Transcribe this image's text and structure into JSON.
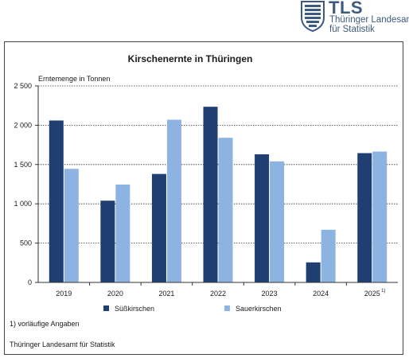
{
  "header": {
    "logo_abbr": "TLS",
    "logo_line1": "Thüringer Landesamt",
    "logo_line2": "für Statistik"
  },
  "chart_data": {
    "type": "bar",
    "title": "Kirschenernte in Thüringen",
    "ylabel": "Erntemenge in Tonnen",
    "xlabel": "",
    "categories": [
      "2019",
      "2020",
      "2021",
      "2022",
      "2023",
      "2024",
      "2025"
    ],
    "category_footnotes": [
      "",
      "",
      "",
      "",
      "",
      "",
      "1)"
    ],
    "ylim": [
      0,
      2500
    ],
    "yticks": [
      0,
      500,
      1000,
      1500,
      2000,
      2500
    ],
    "ytick_labels": [
      "0",
      "500",
      "1 000",
      "1 500",
      "2 000",
      "2 500"
    ],
    "grid": "horizontal dotted",
    "legend_position": "bottom",
    "series": [
      {
        "name": "Süßkirschen",
        "color": "#1f3f73",
        "values": [
          2060,
          1040,
          1380,
          2235,
          1630,
          255,
          1645
        ]
      },
      {
        "name": "Sauerkirschen",
        "color": "#8db3e2",
        "values": [
          1445,
          1245,
          2070,
          1840,
          1540,
          670,
          1665
        ]
      }
    ]
  },
  "footnote": "1) vorläufige Angaben",
  "source": "Thüringer Landesamt für Statistik"
}
